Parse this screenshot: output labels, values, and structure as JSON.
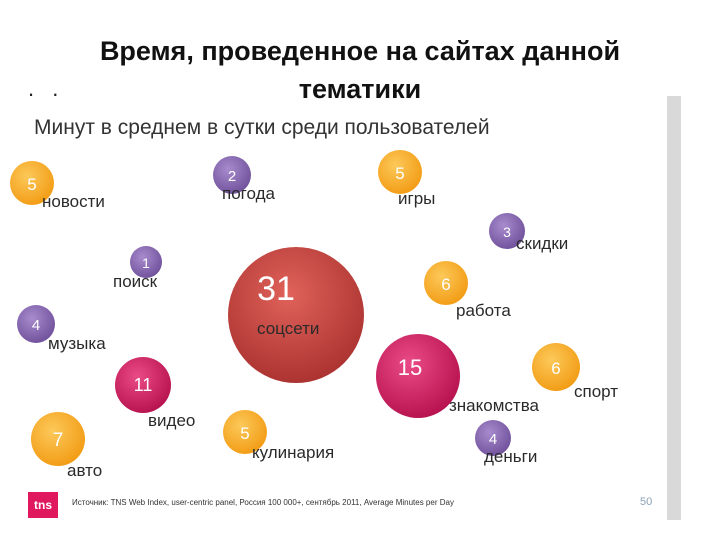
{
  "title": "Время, проведенное на сайтах данной тематики",
  "dots": ". .",
  "subtitle": "Минут в среднем в сутки среди пользователей",
  "footer": {
    "logo": "tns",
    "source": "Источник: TNS Web Index, user-centric panel, Россия 100 000+, сентябрь 2011, Average Minutes per Day",
    "page_number": "50"
  },
  "colors": {
    "orange": "#f6a21b",
    "purple": "#7f5fa8",
    "red": "#b83a3a",
    "pink": "#c8185a"
  },
  "chart_data": {
    "type": "bubble",
    "title": "Время, проведенное на сайтах данной тематики",
    "subtitle": "Минут в среднем в сутки среди пользователей",
    "points": [
      {
        "label": "новости",
        "value": 5,
        "color": "orange"
      },
      {
        "label": "погода",
        "value": 2,
        "color": "purple"
      },
      {
        "label": "игры",
        "value": 5,
        "color": "orange"
      },
      {
        "label": "скидки",
        "value": 3,
        "color": "purple"
      },
      {
        "label": "поиск",
        "value": 1,
        "color": "purple"
      },
      {
        "label": "соцсети",
        "value": 31,
        "color": "red"
      },
      {
        "label": "работа",
        "value": 6,
        "color": "orange"
      },
      {
        "label": "музыка",
        "value": 4,
        "color": "purple"
      },
      {
        "label": "видео",
        "value": 11,
        "color": "pink"
      },
      {
        "label": "знакомства",
        "value": 15,
        "color": "pink"
      },
      {
        "label": "спорт",
        "value": 6,
        "color": "orange"
      },
      {
        "label": "авто",
        "value": 7,
        "color": "orange"
      },
      {
        "label": "кулинария",
        "value": 5,
        "color": "orange"
      },
      {
        "label": "деньги",
        "value": 4,
        "color": "purple"
      }
    ]
  }
}
